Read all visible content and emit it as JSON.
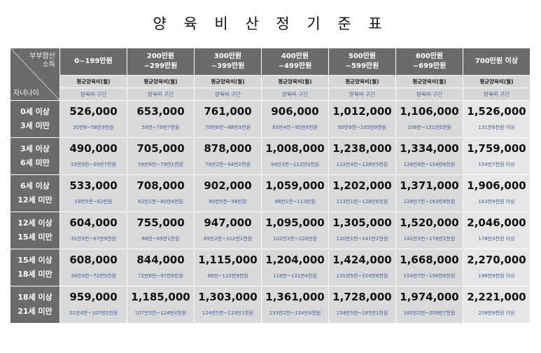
{
  "title": "양 육 비 산 정 기 준 표",
  "corner": {
    "top_line1": "부부합산",
    "top_line2": "소득",
    "bottom": "자녀나이"
  },
  "income_columns": [
    {
      "line1": "0~199만원",
      "line2": ""
    },
    {
      "line1": "200만원",
      "line2": "~299만원"
    },
    {
      "line1": "300만원",
      "line2": "~399만원"
    },
    {
      "line1": "400만원",
      "line2": "~499만원"
    },
    {
      "line1": "500만원",
      "line2": "~599만원"
    },
    {
      "line1": "600만원",
      "line2": "~699만원"
    },
    {
      "line1": "700만원 이상",
      "line2": ""
    }
  ],
  "subheader": {
    "avg_label": "평균양육비(월)",
    "range_label": "양육비 구간"
  },
  "rows": [
    {
      "age_line1": "0세 이상",
      "age_line2": "3세 미만",
      "amounts": [
        "526,000",
        "653,000",
        "761,000",
        "906,000",
        "1,012,000",
        "1,106,000",
        "1,526,000"
      ],
      "ranges": [
        "20만8~58만9천원",
        "59만~70만7천원",
        "70만8천~88만3천원",
        "83만4천~95만8천원",
        "95만9천~105만9천원",
        "106만~131만5천원",
        "131만6천원 이상"
      ]
    },
    {
      "age_line1": "3세 이상",
      "age_line2": "6세 미만",
      "amounts": [
        "490,000",
        "705,000",
        "878,000",
        "1,008,000",
        "1,238,000",
        "1,334,000",
        "1,759,000"
      ],
      "ranges": [
        "23만9천~59만7천원",
        "59만8천~79만1천원",
        "79만2천~94만2천원",
        "94만3천~112만3천원",
        "112만4천~128만5천원",
        "128만6천~154만6천원",
        "154만7천원 이상"
      ]
    },
    {
      "age_line1": "6세 이상",
      "age_line2": "12세 미만",
      "amounts": [
        "533,000",
        "708,000",
        "902,000",
        "1,059,000",
        "1,202,000",
        "1,371,000",
        "1,906,000"
      ],
      "ranges": [
        "18만5천~62만원",
        "62만1천~80만4천원",
        "80만5천~98만원",
        "98만1천~113만원",
        "113만1천~128만6천원",
        "128만7천~163만8천원",
        "163만9천원 이상"
      ]
    },
    {
      "age_line1": "12세 이상",
      "age_line2": "15세 미만",
      "amounts": [
        "604,000",
        "755,000",
        "947,000",
        "1,095,000",
        "1,305,000",
        "1,520,000",
        "2,046,000"
      ],
      "ranges": [
        "31만3천~67만9천원",
        "68만~85만1천원",
        "85만2천~102만1천원",
        "102만2천~120만원",
        "120만1천~141만2천원",
        "141만3천~178만2천원",
        "178만3천원 이상"
      ]
    },
    {
      "age_line1": "15세 이상",
      "age_line2": "18세 미만",
      "amounts": [
        "608,000",
        "844,000",
        "1,115,000",
        "1,204,000",
        "1,424,000",
        "1,668,000",
        "2,270,000"
      ],
      "ranges": [
        "34만3천~72만5천원",
        "72만6천~97만9천원",
        "98만~115만9천원",
        "116만~131만4천원",
        "131만5천~154만6천원",
        "154만7천~196만8천원",
        "196만9천원 이상"
      ]
    },
    {
      "age_line1": "18세 이상",
      "age_line2": "21세 미만",
      "amounts": [
        "959,000",
        "1,185,000",
        "1,303,000",
        "1,361,000",
        "1,728,000",
        "1,974,000",
        "2,221,000"
      ],
      "ranges": [
        "31만4천~107만2천원",
        "107만3천~124만4천원",
        "124만5천~133만1천원",
        "133만2천~154만4천원",
        "154만5천~185만1천원",
        "185만2천~209만7천원",
        "209만8천원 이상"
      ]
    }
  ]
}
